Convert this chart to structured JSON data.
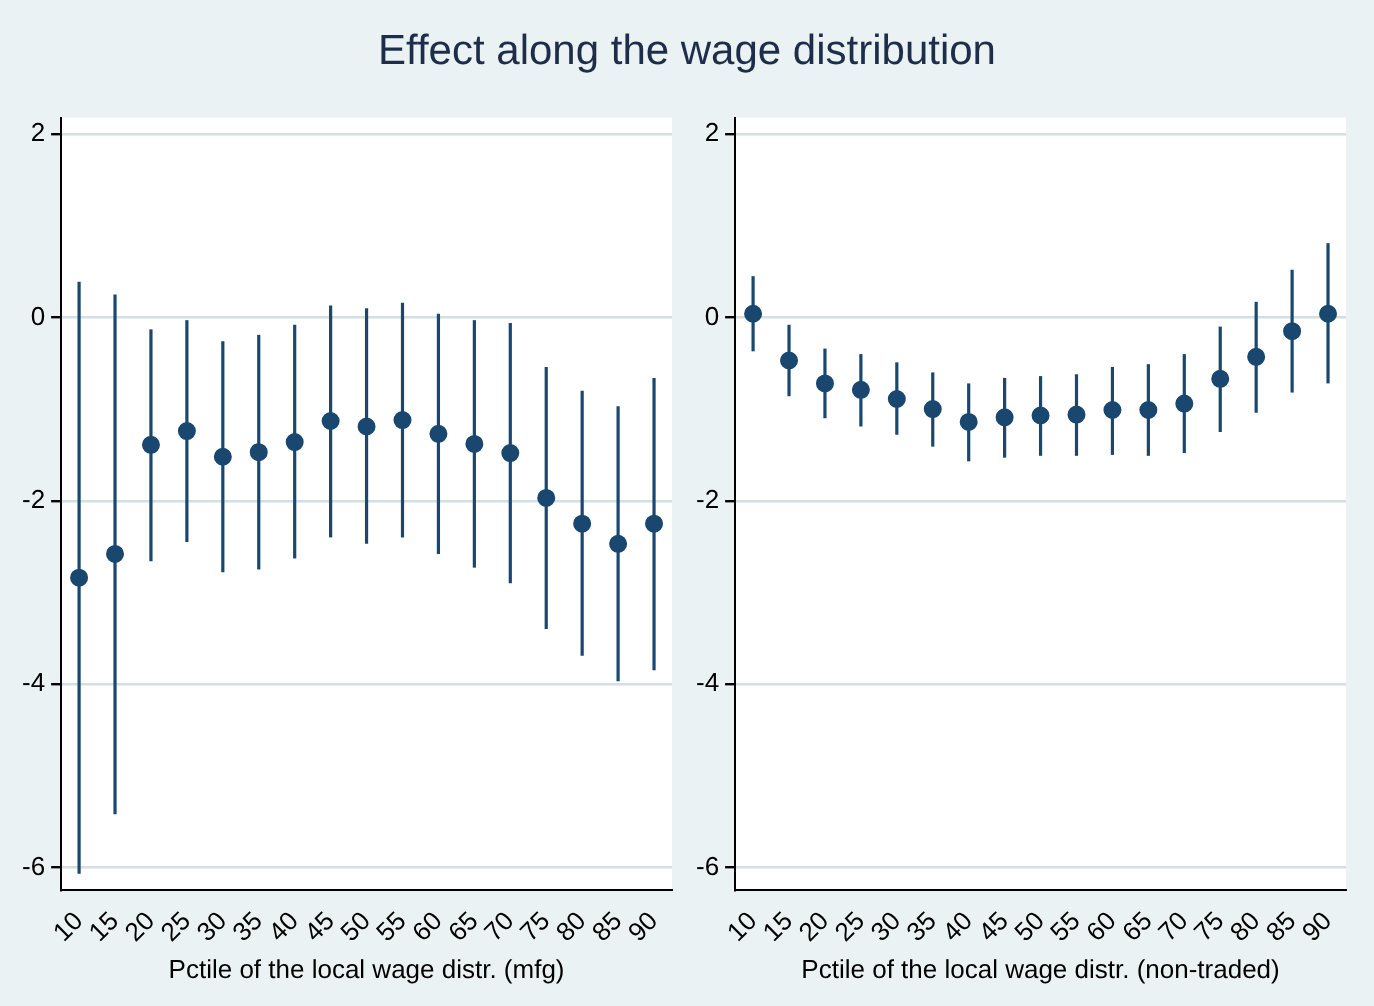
{
  "chart_data": [
    {
      "type": "scatter",
      "title": "Effect along the wage distribution",
      "xlabel": "Pctile of the local wage distr. (mfg)",
      "categories": [
        "10",
        "15",
        "20",
        "25",
        "30",
        "35",
        "40",
        "45",
        "50",
        "55",
        "60",
        "65",
        "70",
        "75",
        "80",
        "85",
        "90"
      ],
      "series": [
        {
          "color": "#1a476f",
          "values": [
            -2.84,
            -2.58,
            -1.39,
            -1.24,
            -1.52,
            -1.47,
            -1.36,
            -1.13,
            -1.19,
            -1.12,
            -1.27,
            -1.38,
            -1.48,
            -1.97,
            -2.25,
            -2.47,
            -2.25
          ],
          "errors": [
            [
              -6.07,
              0.39
            ],
            [
              -5.42,
              0.25
            ],
            [
              -2.66,
              -0.13
            ],
            [
              -2.45,
              -0.03
            ],
            [
              -2.78,
              -0.26
            ],
            [
              -2.75,
              -0.19
            ],
            [
              -2.63,
              -0.08
            ],
            [
              -2.4,
              0.13
            ],
            [
              -2.47,
              0.1
            ],
            [
              -2.4,
              0.16
            ],
            [
              -2.58,
              0.04
            ],
            [
              -2.73,
              -0.03
            ],
            [
              -2.9,
              -0.06
            ],
            [
              -3.4,
              -0.54
            ],
            [
              -3.69,
              -0.8
            ],
            [
              -3.97,
              -0.97
            ],
            [
              -3.85,
              -0.66
            ]
          ]
        }
      ],
      "ylim": [
        -6.25,
        2.18
      ],
      "yticks": [
        -6,
        -4,
        -2,
        0,
        2
      ],
      "grid": "y",
      "marker": "circle"
    },
    {
      "type": "scatter",
      "xlabel": "Pctile of the local wage distr. (non-traded)",
      "categories": [
        "10",
        "15",
        "20",
        "25",
        "30",
        "35",
        "40",
        "45",
        "50",
        "55",
        "60",
        "65",
        "70",
        "75",
        "80",
        "85",
        "90"
      ],
      "series": [
        {
          "color": "#1a476f",
          "values": [
            0.04,
            -0.47,
            -0.72,
            -0.79,
            -0.89,
            -1.0,
            -1.14,
            -1.09,
            -1.07,
            -1.06,
            -1.01,
            -1.01,
            -0.94,
            -0.67,
            -0.43,
            -0.15,
            0.04
          ],
          "errors": [
            [
              -0.37,
              0.45
            ],
            [
              -0.86,
              -0.08
            ],
            [
              -1.1,
              -0.34
            ],
            [
              -1.19,
              -0.4
            ],
            [
              -1.28,
              -0.49
            ],
            [
              -1.41,
              -0.6
            ],
            [
              -1.57,
              -0.72
            ],
            [
              -1.53,
              -0.66
            ],
            [
              -1.51,
              -0.64
            ],
            [
              -1.51,
              -0.62
            ],
            [
              -1.5,
              -0.54
            ],
            [
              -1.51,
              -0.51
            ],
            [
              -1.48,
              -0.4
            ],
            [
              -1.25,
              -0.1
            ],
            [
              -1.04,
              0.17
            ],
            [
              -0.82,
              0.52
            ],
            [
              -0.72,
              0.81
            ]
          ]
        }
      ],
      "ylim": [
        -6.25,
        2.18
      ],
      "yticks": [
        -6,
        -4,
        -2,
        0,
        2
      ],
      "grid": "y",
      "marker": "circle"
    }
  ]
}
